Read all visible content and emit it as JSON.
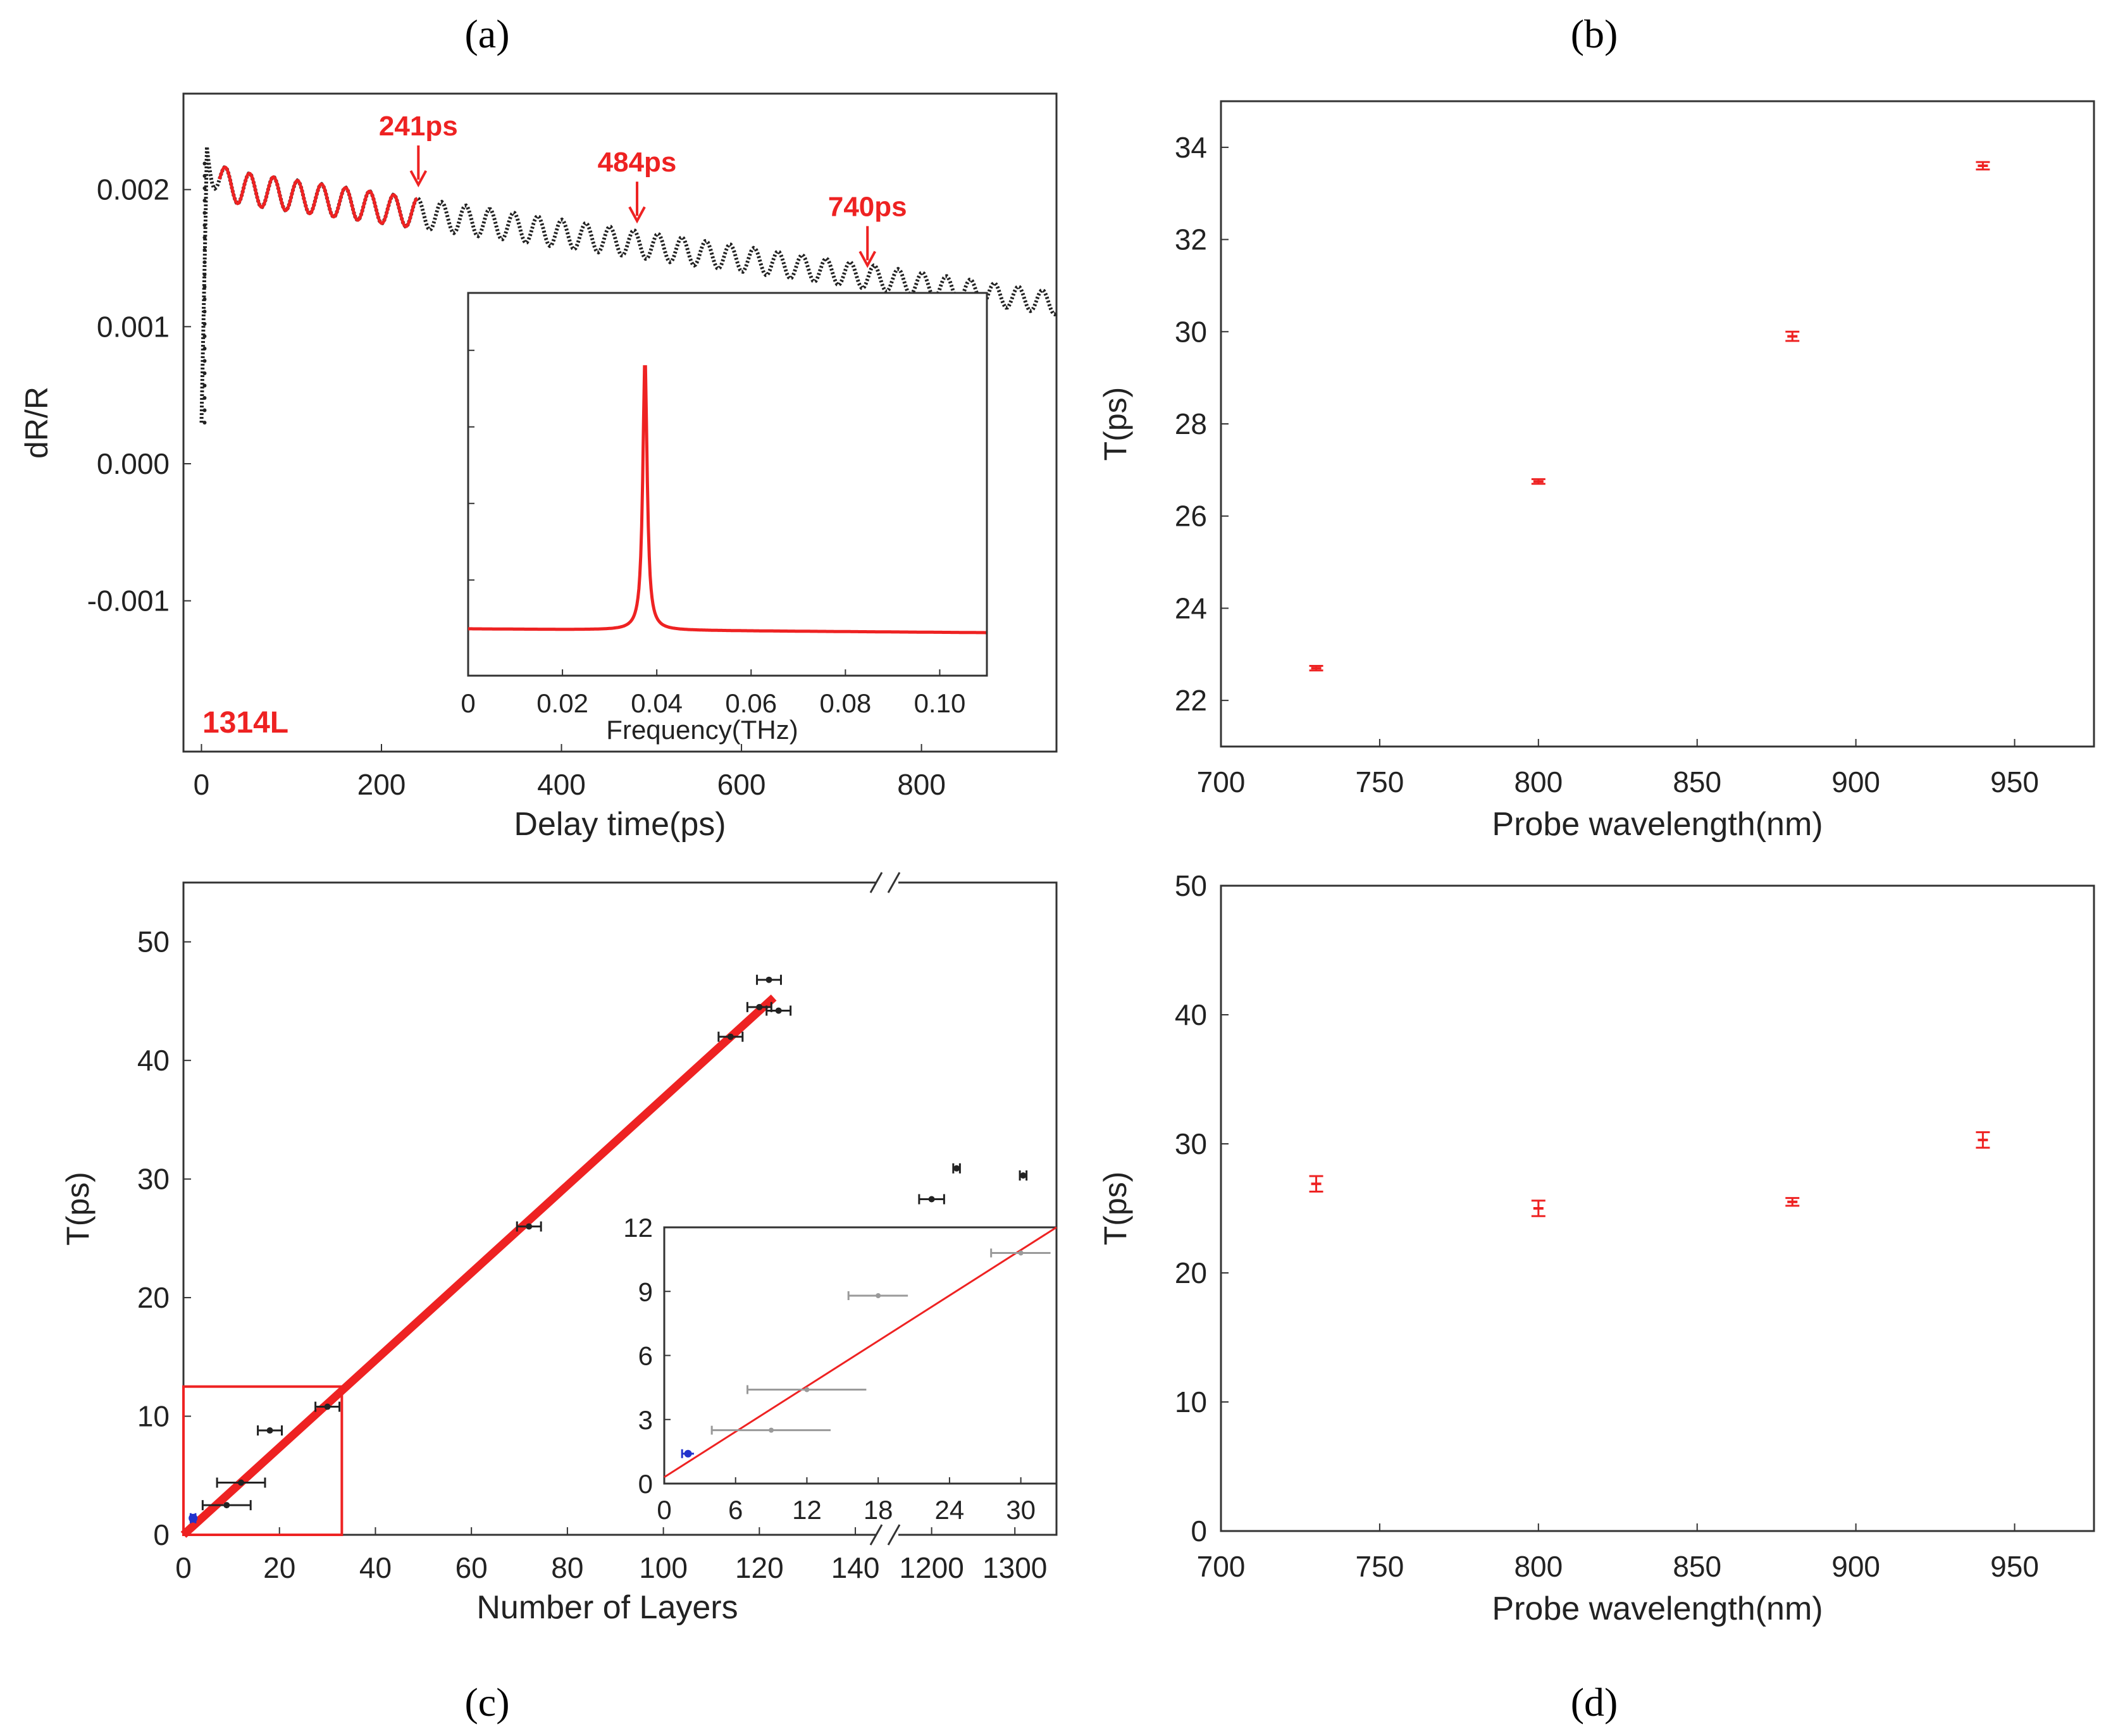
{
  "panel_labels": [
    "(a)",
    "(b)",
    "(c)",
    "(d)"
  ],
  "colors": {
    "red": "#ee2222",
    "black": "#222222",
    "gray": "#9a9a9a",
    "blue": "#2233cc"
  },
  "chart_data": [
    {
      "panel": "a",
      "type": "line",
      "xlabel": "Delay time(ps)",
      "ylabel": "dR/R",
      "xlim": [
        -20,
        950
      ],
      "ylim": [
        -0.0021,
        0.0027
      ],
      "xticks": [
        "0",
        "200",
        "400",
        "600",
        "800"
      ],
      "yticks": [
        "0.002",
        "0.001",
        "0.000",
        "-0.001"
      ],
      "ytick_values": [
        0.002,
        0.001,
        0.0,
        -0.001
      ],
      "xtick_values": [
        0,
        200,
        400,
        600,
        800
      ],
      "sample_label": "1314L",
      "oscillation_period_ps": 26.7,
      "series": [
        {
          "name": "measured",
          "color": "black",
          "x_range": [
            0,
            950
          ]
        },
        {
          "name": "fit",
          "color": "red",
          "x_range": [
            20,
            240
          ]
        }
      ],
      "annotations": [
        {
          "text": "241ps",
          "x": 241
        },
        {
          "text": "484ps",
          "x": 484
        },
        {
          "text": "740ps",
          "x": 740
        }
      ],
      "inset": {
        "type": "line",
        "xlabel": "Frequency(THz)",
        "xticks": [
          "0",
          "0.02",
          "0.04",
          "0.06",
          "0.08",
          "0.10"
        ],
        "xtick_values": [
          0,
          0.02,
          0.04,
          0.06,
          0.08,
          0.1
        ],
        "xlim": [
          0,
          0.11
        ],
        "peak_frequency_THz": 0.0375
      }
    },
    {
      "panel": "b",
      "type": "scatter",
      "xlabel": "Probe wavelength(nm)",
      "ylabel": "T(ps)",
      "xlim": [
        700,
        975
      ],
      "ylim": [
        21,
        35
      ],
      "xticks": [
        "700",
        "750",
        "800",
        "850",
        "900",
        "950"
      ],
      "xtick_values": [
        700,
        750,
        800,
        850,
        900,
        950
      ],
      "yticks": [
        "22",
        "24",
        "26",
        "28",
        "30",
        "32",
        "34"
      ],
      "ytick_values": [
        22,
        24,
        26,
        28,
        30,
        32,
        34
      ],
      "points": [
        {
          "x": 730,
          "y": 22.7,
          "err": 0.05
        },
        {
          "x": 800,
          "y": 26.75,
          "err": 0.05
        },
        {
          "x": 880,
          "y": 29.9,
          "err": 0.1
        },
        {
          "x": 940,
          "y": 33.6,
          "err": 0.08
        }
      ]
    },
    {
      "panel": "c",
      "type": "scatter",
      "xlabel": "Number of Layers",
      "ylabel": "T(ps)",
      "ylim": [
        0,
        55
      ],
      "xticks": [
        "0",
        "20",
        "40",
        "60",
        "80",
        "100",
        "120",
        "140",
        "1200",
        "1300"
      ],
      "xtick_values": [
        0,
        20,
        40,
        60,
        80,
        100,
        120,
        140,
        1200,
        1300
      ],
      "yticks": [
        "0",
        "10",
        "20",
        "30",
        "40",
        "50"
      ],
      "ytick_values": [
        0,
        10,
        20,
        30,
        40,
        50
      ],
      "axis_break": "between 145 and 1160",
      "fit_line": {
        "x": [
          0,
          123
        ],
        "y": [
          0,
          45.3
        ]
      },
      "points": [
        {
          "x": 2,
          "y": 1.4,
          "xerr": 0.5,
          "yerr": 0.1,
          "color": "blue"
        },
        {
          "x": 9,
          "y": 2.5,
          "xerr": 5,
          "yerr": 0.1
        },
        {
          "x": 12,
          "y": 4.4,
          "xerr": 5,
          "yerr": 0.1
        },
        {
          "x": 18,
          "y": 8.8,
          "xerr": 2.5,
          "yerr": 0.3
        },
        {
          "x": 30,
          "y": 10.8,
          "xerr": 2.5,
          "yerr": 0.1
        },
        {
          "x": 72,
          "y": 26,
          "xerr": 2.5,
          "yerr": 0.1
        },
        {
          "x": 114,
          "y": 42,
          "xerr": 2.5,
          "yerr": 0.2
        },
        {
          "x": 120,
          "y": 44.5,
          "xerr": 2.5,
          "yerr": 0.2
        },
        {
          "x": 122,
          "y": 46.8,
          "xerr": 2.5,
          "yerr": 0.2
        },
        {
          "x": 124,
          "y": 44.2,
          "xerr": 2.5,
          "yerr": 0.2
        },
        {
          "x": 1200,
          "y": 28.3,
          "xerr": 15,
          "yerr": 0.1
        },
        {
          "x": 1230,
          "y": 30.9,
          "xerr": 4,
          "yerr": 0.4
        },
        {
          "x": 1310,
          "y": 30.3,
          "xerr": 4,
          "yerr": 0.4
        }
      ],
      "inset": {
        "xlim": [
          0,
          33
        ],
        "ylim": [
          0,
          12
        ],
        "xticks": [
          "0",
          "6",
          "12",
          "18",
          "24",
          "30"
        ],
        "xtick_values": [
          0,
          6,
          12,
          18,
          24,
          30
        ],
        "yticks": [
          "0",
          "3",
          "6",
          "9",
          "12"
        ],
        "ytick_values": [
          0,
          3,
          6,
          9,
          12
        ]
      }
    },
    {
      "panel": "d",
      "type": "scatter",
      "xlabel": "Probe wavelength(nm)",
      "ylabel": "T(ps)",
      "xlim": [
        700,
        975
      ],
      "ylim": [
        0,
        50
      ],
      "xticks": [
        "700",
        "750",
        "800",
        "850",
        "900",
        "950"
      ],
      "xtick_values": [
        700,
        750,
        800,
        850,
        900,
        950
      ],
      "yticks": [
        "0",
        "10",
        "20",
        "30",
        "40",
        "50"
      ],
      "ytick_values": [
        0,
        10,
        20,
        30,
        40,
        50
      ],
      "points": [
        {
          "x": 730,
          "y": 26.9,
          "err": 0.6
        },
        {
          "x": 800,
          "y": 25.0,
          "err": 0.6
        },
        {
          "x": 880,
          "y": 25.5,
          "err": 0.3
        },
        {
          "x": 940,
          "y": 30.3,
          "err": 0.6
        }
      ]
    }
  ]
}
